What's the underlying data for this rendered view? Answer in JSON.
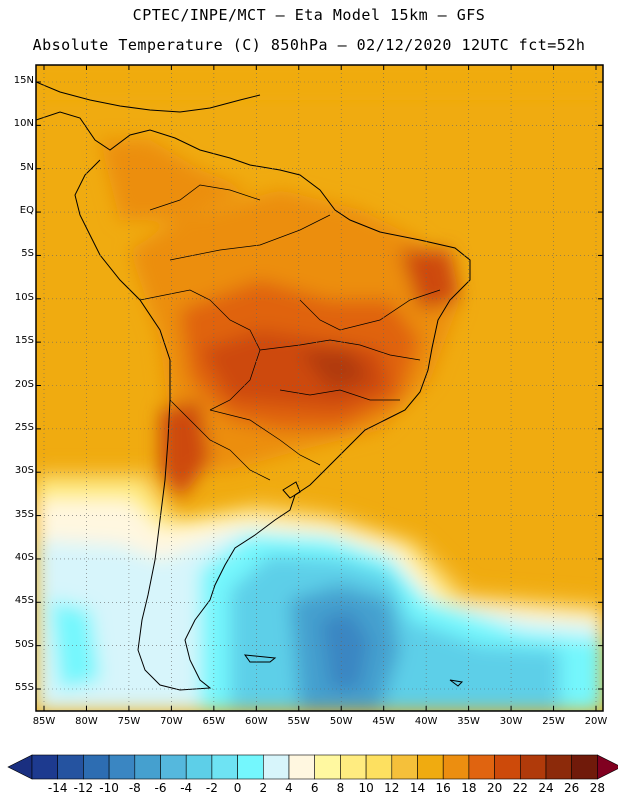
{
  "title_line1": "CPTEC/INPE/MCT –  Eta Model 15km – GFS",
  "title_line2": "Absolute Temperature (C) 850hPa – 02/12/2020 12UTC fct=52h",
  "lat_labels": [
    "15N",
    "10N",
    "5N",
    "EQ",
    "5S",
    "10S",
    "15S",
    "20S",
    "25S",
    "30S",
    "35S",
    "40S",
    "45S",
    "50S",
    "55S"
  ],
  "lat_values": [
    15,
    10,
    5,
    0,
    -5,
    -10,
    -15,
    -20,
    -25,
    -30,
    -35,
    -40,
    -45,
    -50,
    -55
  ],
  "lon_labels": [
    "85W",
    "80W",
    "75W",
    "70W",
    "65W",
    "60W",
    "55W",
    "50W",
    "45W",
    "40W",
    "35W",
    "30W",
    "25W",
    "20W"
  ],
  "lon_values": [
    -85,
    -80,
    -75,
    -70,
    -65,
    -60,
    -55,
    -50,
    -45,
    -40,
    -35,
    -30,
    -25,
    -20
  ],
  "colorbar": {
    "labels": [
      "-14",
      "-12",
      "-10",
      "-8",
      "-6",
      "-4",
      "-2",
      "0",
      "2",
      "4",
      "6",
      "8",
      "10",
      "12",
      "14",
      "16",
      "18",
      "20",
      "22",
      "24",
      "26",
      "28"
    ],
    "colors": [
      "#1d3a8f",
      "#2553a0",
      "#2d6db2",
      "#3a86c2",
      "#45a0cf",
      "#55b8dd",
      "#5dcfe8",
      "#6ee3f3",
      "#74f7fd",
      "#d7f5fb",
      "#fff7e0",
      "#fff8a0",
      "#ffec80",
      "#fde060",
      "#f5c03a",
      "#f0ab10",
      "#ec8e10",
      "#e06410",
      "#cd4a0a",
      "#b03a0a",
      "#8c2a0a",
      "#701a0a"
    ],
    "under_color": "#1a2f80",
    "over_color": "#800020"
  }
}
